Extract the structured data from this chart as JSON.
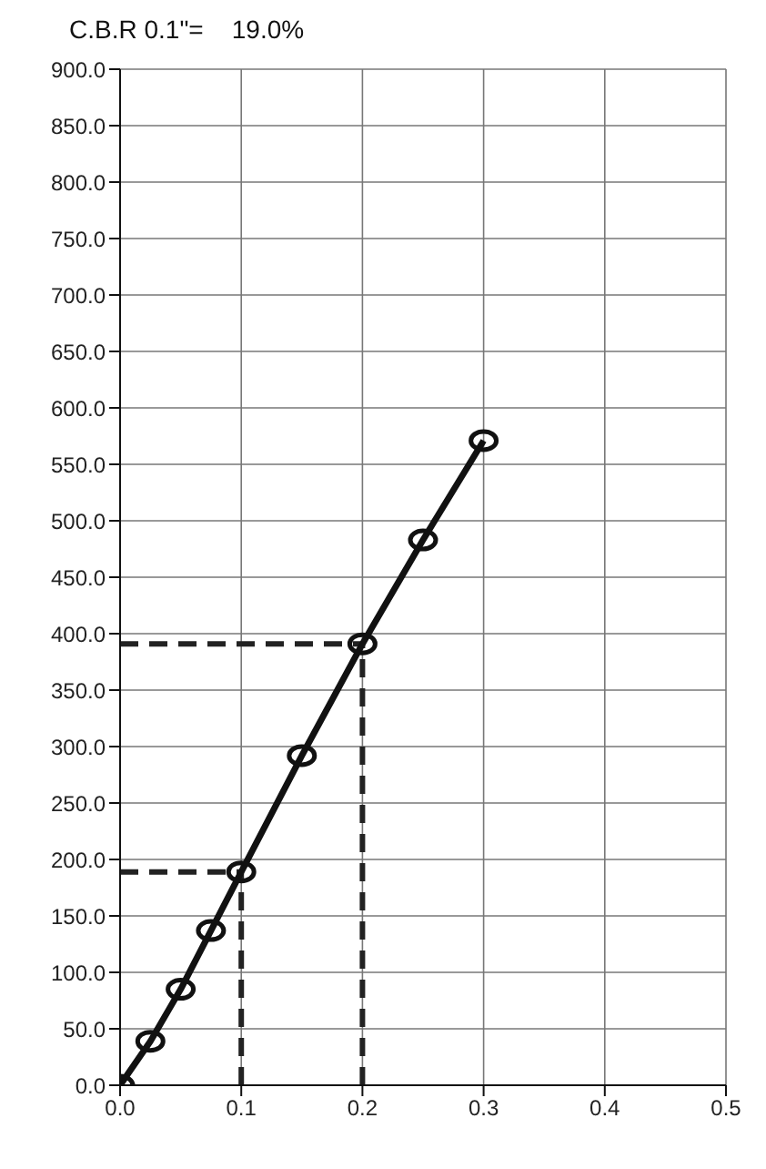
{
  "chart_data": {
    "type": "line",
    "title": "C.B.R 0.1\"=    19.0%",
    "x": [
      0,
      0.025,
      0.05,
      0.075,
      0.1,
      0.15,
      0.2,
      0.25,
      0.3
    ],
    "series": [
      {
        "color": "#111111",
        "values": [
          0,
          39,
          85,
          137,
          189,
          292,
          391,
          483,
          571
        ]
      }
    ],
    "xlim": [
      0,
      0.5
    ],
    "xticks": [
      {
        "value": 0,
        "label": "0.0"
      },
      {
        "value": 0.1,
        "label": "0.1"
      },
      {
        "value": 0.2,
        "label": "0.2"
      },
      {
        "value": 0.3,
        "label": "0.3"
      },
      {
        "value": 0.4,
        "label": "0.4"
      },
      {
        "value": 0.5,
        "label": "0.5"
      }
    ],
    "ylim": [
      0,
      900
    ],
    "yticks": [
      {
        "value": 0,
        "label": "0.0"
      },
      {
        "value": 50,
        "label": "50.0"
      },
      {
        "value": 100,
        "label": "100.0"
      },
      {
        "value": 150,
        "label": "150.0"
      },
      {
        "value": 200,
        "label": "200.0"
      },
      {
        "value": 250,
        "label": "250.0"
      },
      {
        "value": 300,
        "label": "300.0"
      },
      {
        "value": 350,
        "label": "350.0"
      },
      {
        "value": 400,
        "label": "400.0"
      },
      {
        "value": 450,
        "label": "450.0"
      },
      {
        "value": 500,
        "label": "500.0"
      },
      {
        "value": 550,
        "label": "550.0"
      },
      {
        "value": 600,
        "label": "600.0"
      },
      {
        "value": 650,
        "label": "650.0"
      },
      {
        "value": 700,
        "label": "700.0"
      },
      {
        "value": 750,
        "label": "750.0"
      },
      {
        "value": 800,
        "label": "800.0"
      },
      {
        "value": 850,
        "label": "850.0"
      },
      {
        "value": 900,
        "label": "900.0"
      }
    ],
    "ref_lines": [
      {
        "axis": "x",
        "value": 0.1,
        "line_style": "dashed",
        "color": "#222222"
      },
      {
        "axis": "x",
        "value": 0.2,
        "line_style": "dashed",
        "color": "#222222"
      },
      {
        "axis": "y",
        "value": 189,
        "line_style": "dashed",
        "color": "#222222"
      },
      {
        "axis": "y",
        "value": 391,
        "line_style": "dashed",
        "color": "#222222"
      }
    ],
    "grid": true,
    "marker": "circle",
    "line_style": "solid",
    "legend": false
  }
}
